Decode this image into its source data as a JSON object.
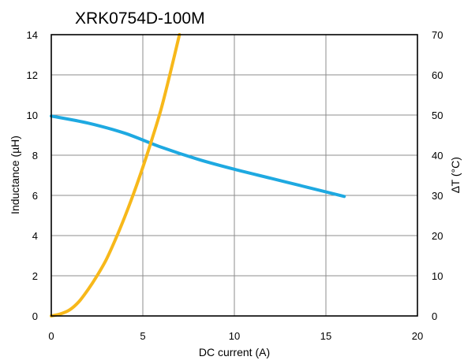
{
  "chart_data": {
    "type": "line",
    "title": "XRK0754D-100M",
    "xlabel": "DC current (A)",
    "ylabel_left": "Inductance (µH)",
    "ylabel_right": "∆T (°C)",
    "xlim": [
      0,
      20
    ],
    "ylim_left": [
      0,
      14
    ],
    "ylim_right": [
      0,
      70
    ],
    "x_ticks": [
      "0",
      "5",
      "10",
      "15",
      "20"
    ],
    "y_left_ticks": [
      "0",
      "2",
      "4",
      "6",
      "8",
      "10",
      "12",
      "14"
    ],
    "y_right_ticks": [
      "0",
      "10",
      "20",
      "30",
      "40",
      "50",
      "60",
      "70"
    ],
    "grid": true,
    "series": [
      {
        "axis": "left",
        "color": "#1ea9e1",
        "x": [
          0,
          2,
          4,
          6,
          8,
          10,
          12,
          14,
          16
        ],
        "y": [
          9.95,
          9.6,
          9.1,
          8.4,
          7.8,
          7.3,
          6.85,
          6.4,
          5.95
        ]
      },
      {
        "axis": "right",
        "color": "#f7b81a",
        "x": [
          0,
          0.5,
          1,
          1.5,
          2,
          2.5,
          3,
          3.5,
          4,
          4.5,
          5,
          5.5,
          6,
          6.5,
          7
        ],
        "y": [
          0,
          0.5,
          1.5,
          3.5,
          6.5,
          10,
          14,
          19,
          24.5,
          30.5,
          37,
          44,
          51.5,
          60.5,
          70
        ]
      }
    ]
  }
}
